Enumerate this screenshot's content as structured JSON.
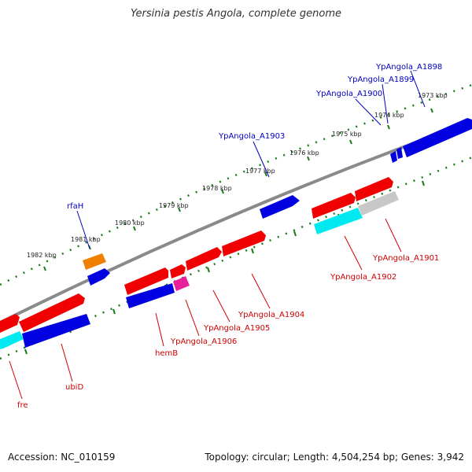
{
  "title": "Yersinia pestis Angola, complete genome",
  "footer": {
    "accession": "Accession: NC_010159",
    "summary": "Topology: circular; Length: 4,504,254 bp; Genes: 3,942"
  },
  "colors": {
    "forward": "#f00000",
    "reverse": "#0000e0",
    "orange": "#f08000",
    "pink": "#e8209a",
    "cyan": "#00e8f0",
    "grey": "#c0c0c0",
    "tick_dots": "#1a7a1a",
    "backbone": "#888888",
    "label_blue": "#0000c0",
    "label_red": "#d00000"
  },
  "scale_labels": [
    "1982 kbp",
    "1981 kbp",
    "1980 kbp",
    "1979 kbp",
    "1978 kbp",
    "1977 kbp",
    "1976 kbp",
    "1975 kbp",
    "1974 kbp",
    "1973 kbp"
  ],
  "top_gene_labels": [
    "rfaH",
    "YpAngola_A1903",
    "YpAngola_A1900",
    "YpAngola_A1899",
    "YpAngola_A1898"
  ],
  "bottom_gene_labels": [
    "fre",
    "ubiD",
    "hemB",
    "YpAngola_A1906",
    "YpAngola_A1905",
    "YpAngola_A1904",
    "YpAngola_A1902",
    "YpAngola_A1901"
  ]
}
